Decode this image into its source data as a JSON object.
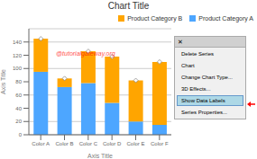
{
  "chart_data": {
    "type": "bar",
    "stacked": true,
    "title": "Chart Title",
    "xlabel": "Axis Title",
    "ylabel": "Axis Title",
    "categories": [
      "Color A",
      "Color B",
      "Color C",
      "Color D",
      "Color E",
      "Color F"
    ],
    "series": [
      {
        "name": "Product Category A",
        "color": "#4DA6FF",
        "values": [
          95,
          72,
          78,
          48,
          20,
          15
        ]
      },
      {
        "name": "Product Category B",
        "color": "#FFA500",
        "values": [
          50,
          13,
          48,
          70,
          62,
          95
        ]
      }
    ],
    "ylim": [
      0,
      160
    ],
    "yticks": [
      0,
      20,
      40,
      60,
      80,
      100,
      120,
      140
    ],
    "grid": true,
    "legend": "upper right",
    "annotations": [
      "@tutorialgateway.org",
      "✕",
      "Delete Series",
      "Chart",
      "Change Chart Type...",
      "3D Effects...",
      "Show Data Labels",
      "Series Properties..."
    ]
  }
}
